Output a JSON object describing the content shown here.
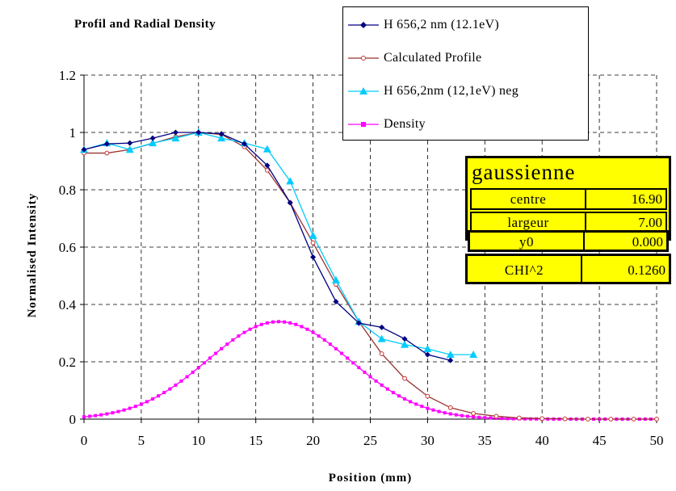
{
  "chart_data": {
    "type": "line",
    "title": "Profil and Radial Density",
    "xlabel": "Position (mm)",
    "ylabel": "Normalised Intensity",
    "xlim": [
      0,
      50
    ],
    "ylim": [
      0,
      1.2
    ],
    "x_ticks": [
      "0",
      "5",
      "10",
      "15",
      "20",
      "25",
      "30",
      "35",
      "40",
      "45",
      "50"
    ],
    "y_ticks": [
      "0",
      "0.2",
      "0.4",
      "0.6",
      "0.8",
      "1",
      "1.2"
    ],
    "grid": true,
    "legend_position": "top-right",
    "series": [
      {
        "name": "H 656,2 nm (12.1eV)",
        "color": "#000080",
        "marker": "diamond",
        "x": [
          0,
          2,
          4,
          6,
          8,
          10,
          12,
          14,
          16,
          18,
          20,
          22,
          24,
          26,
          28,
          30,
          32
        ],
        "y": [
          0.94,
          0.96,
          0.963,
          0.98,
          1.0,
          1.0,
          0.995,
          0.96,
          0.885,
          0.755,
          0.565,
          0.41,
          0.335,
          0.32,
          0.28,
          0.225,
          0.205
        ]
      },
      {
        "name": "Calculated Profile",
        "color": "#993333",
        "marker": "circle",
        "x": [
          0,
          2,
          4,
          6,
          8,
          10,
          12,
          14,
          16,
          18,
          20,
          22,
          24,
          26,
          28,
          30,
          32,
          34,
          36,
          38,
          40,
          42,
          44,
          46,
          48,
          50
        ],
        "y": [
          0.928,
          0.928,
          0.94,
          0.962,
          0.985,
          1.0,
          0.993,
          0.95,
          0.868,
          0.755,
          0.615,
          0.47,
          0.34,
          0.228,
          0.142,
          0.08,
          0.04,
          0.02,
          0.01,
          0.004,
          0.002,
          0.001,
          0.0,
          0.0,
          0.0,
          0.0
        ]
      },
      {
        "name": "H 656,2nm (12,1eV) neg",
        "color": "#00ccff",
        "marker": "triangle",
        "x": [
          0,
          2,
          4,
          6,
          8,
          10,
          12,
          14,
          16,
          18,
          20,
          22,
          24,
          26,
          28,
          30,
          32,
          34
        ],
        "y": [
          0.94,
          0.963,
          0.94,
          0.963,
          0.98,
          1.0,
          0.98,
          0.963,
          0.942,
          0.83,
          0.64,
          0.485,
          0.34,
          0.28,
          0.26,
          0.245,
          0.225,
          0.225
        ]
      },
      {
        "name": "Density",
        "color": "#ff00ff",
        "marker": "square",
        "peak_x": 17,
        "peak_y": 0.34,
        "baseline_y": 0.0,
        "start_y": 0.02,
        "step": 0.5
      }
    ]
  },
  "info_box": {
    "title": "gaussienne",
    "rows": [
      {
        "key": "centre",
        "value": "16.90"
      },
      {
        "key": "largeur",
        "value": "7.00"
      },
      {
        "key": "y0",
        "value": "0.000"
      },
      {
        "key": "CHI^2",
        "value": "0.1260"
      }
    ]
  }
}
